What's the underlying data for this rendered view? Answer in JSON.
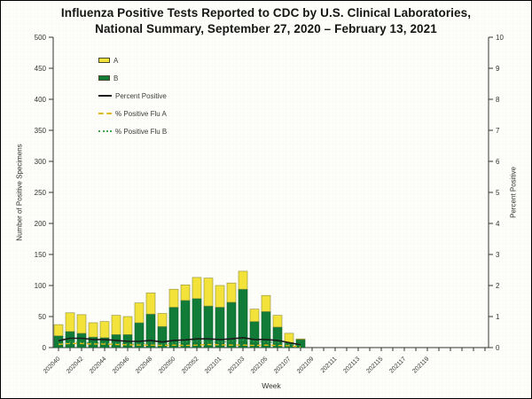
{
  "title": {
    "line1": "Influenza Positive Tests Reported to CDC by U.S. Clinical Laboratories,",
    "line2": "National Summary, September 27, 2020 – February 13, 2021"
  },
  "axes": {
    "left_label": "Number of Positive Specimens",
    "right_label": "Percent Positive",
    "x_label": "Week",
    "left_ticks": [
      0,
      50,
      100,
      150,
      200,
      250,
      300,
      350,
      400,
      450,
      500
    ],
    "right_ticks": [
      0,
      1,
      2,
      3,
      4,
      5,
      6,
      7,
      8,
      9,
      10
    ],
    "x_tick_labels": [
      "202040",
      "202042",
      "202044",
      "202046",
      "202048",
      "202050",
      "202052",
      "202101",
      "202103",
      "202105",
      "202107",
      "202109",
      "202111",
      "202113",
      "202115",
      "202117",
      "202119"
    ]
  },
  "legend": {
    "items": [
      {
        "label": "A",
        "swatch": "box",
        "color": "#f2e23a"
      },
      {
        "label": "B",
        "swatch": "box",
        "color": "#107c38"
      },
      {
        "label": "Percent Positive",
        "swatch": "line",
        "color": "#1b1b1b"
      },
      {
        "label": "% Positive Flu A",
        "swatch": "dashed-line",
        "color": "#ddb712"
      },
      {
        "label": "% Positive Flu B",
        "swatch": "dotted-line",
        "color": "#44a355"
      }
    ]
  },
  "colors": {
    "bar_a_fill": "#f2e23a",
    "bar_a_stroke": "#8f8f3d",
    "bar_b_fill": "#107c38",
    "bar_b_stroke": "#0a5a28",
    "line_percent_positive": "#1b1b1b",
    "line_pct_a": "#ddb712",
    "line_pct_b": "#44a355",
    "axis": "#333333",
    "tick_text": "#333333"
  },
  "chart_data": {
    "type": "bar",
    "subtype": "stacked-bars-with-overlaid-lines",
    "title": "Influenza Positive Tests Reported to CDC by U.S. Clinical Laboratories, National Summary, September 27, 2020 – February 13, 2021",
    "xlabel": "Week",
    "ylabel_left": "Number of Positive Specimens",
    "ylabel_right": "Percent Positive",
    "ylim_left": [
      0,
      500
    ],
    "ylim_right": [
      0,
      10
    ],
    "grid": false,
    "legend_position": "upper-left-inside",
    "stack_order": [
      "B",
      "A"
    ],
    "x": [
      "202040",
      "202041",
      "202042",
      "202043",
      "202044",
      "202045",
      "202046",
      "202047",
      "202048",
      "202049",
      "202050",
      "202051",
      "202052",
      "202053",
      "202101",
      "202102",
      "202103",
      "202104",
      "202105",
      "202106",
      "202107",
      "202108"
    ],
    "series": [
      {
        "name": "A",
        "type": "bar",
        "axis": "left",
        "color": "#f2e23a",
        "values": [
          18,
          30,
          30,
          23,
          26,
          31,
          29,
          32,
          34,
          21,
          29,
          25,
          34,
          45,
          35,
          31,
          29,
          20,
          26,
          19,
          15,
          1
        ]
      },
      {
        "name": "B",
        "type": "bar",
        "axis": "left",
        "color": "#107c38",
        "values": [
          19,
          26,
          23,
          17,
          16,
          21,
          21,
          40,
          54,
          34,
          65,
          76,
          79,
          67,
          65,
          73,
          94,
          42,
          58,
          33,
          8,
          13
        ]
      },
      {
        "name": "Percent Positive",
        "type": "line",
        "style": "solid",
        "axis": "right",
        "color": "#1b1b1b",
        "values": [
          0.22,
          0.3,
          0.3,
          0.26,
          0.26,
          0.23,
          0.2,
          0.2,
          0.23,
          0.18,
          0.23,
          0.25,
          0.28,
          0.28,
          0.26,
          0.28,
          0.32,
          0.26,
          0.26,
          0.23,
          0.16,
          0.09
        ]
      },
      {
        "name": "% Positive Flu A",
        "type": "line",
        "style": "dashed",
        "axis": "right",
        "color": "#ddb712",
        "values": [
          0.1,
          0.13,
          0.13,
          0.11,
          0.11,
          0.1,
          0.09,
          0.08,
          0.08,
          0.07,
          0.08,
          0.07,
          0.08,
          0.1,
          0.09,
          0.08,
          0.08,
          0.07,
          0.08,
          0.07,
          0.06,
          0.02
        ]
      },
      {
        "name": "% Positive Flu B",
        "type": "line",
        "style": "dotted",
        "axis": "right",
        "color": "#44a355",
        "values": [
          0.12,
          0.17,
          0.17,
          0.15,
          0.15,
          0.13,
          0.11,
          0.12,
          0.15,
          0.11,
          0.15,
          0.18,
          0.2,
          0.18,
          0.17,
          0.2,
          0.24,
          0.19,
          0.18,
          0.16,
          0.1,
          0.07
        ]
      }
    ],
    "x_axis_tick_extent": "weekly minor ticks continue unlabeled past the data to the right spine"
  }
}
